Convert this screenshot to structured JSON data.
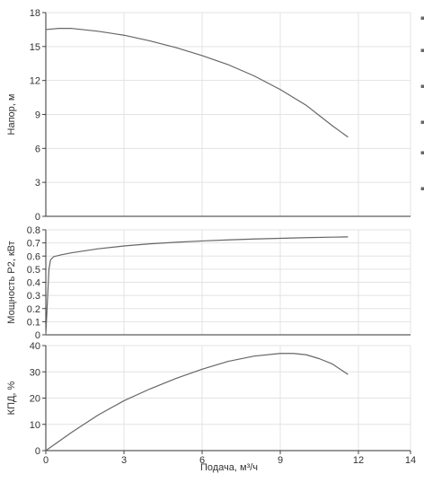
{
  "chart_data": [
    {
      "type": "line",
      "ylabel": "Напор, м",
      "ylim": [
        0,
        18
      ],
      "yticks": [
        0,
        3,
        6,
        9,
        12,
        15,
        18
      ],
      "xlim": [
        0,
        14
      ],
      "grid": true,
      "series": [
        {
          "color": "#666666",
          "x": [
            0,
            0.5,
            1,
            2,
            3,
            4,
            5,
            6,
            7,
            8,
            9,
            10,
            10.5,
            11,
            11.6
          ],
          "y": [
            16.5,
            16.6,
            16.6,
            16.35,
            16.0,
            15.5,
            14.9,
            14.2,
            13.4,
            12.4,
            11.2,
            9.8,
            8.9,
            8.0,
            7.0
          ]
        }
      ]
    },
    {
      "type": "line",
      "ylabel": "Мощность P2, кВт",
      "ylim": [
        0,
        0.8
      ],
      "yticks": [
        0,
        0.1,
        0.2,
        0.3,
        0.4,
        0.5,
        0.6,
        0.7,
        0.8
      ],
      "xlim": [
        0,
        14
      ],
      "grid": true,
      "series": [
        {
          "color": "#666666",
          "x": [
            0,
            0.12,
            0.18,
            0.3,
            0.6,
            1,
            2,
            3,
            4,
            5,
            6,
            7,
            8,
            9,
            10,
            11,
            11.6
          ],
          "y": [
            0,
            0.5,
            0.57,
            0.595,
            0.61,
            0.625,
            0.655,
            0.677,
            0.693,
            0.705,
            0.715,
            0.723,
            0.73,
            0.735,
            0.74,
            0.744,
            0.746
          ]
        }
      ]
    },
    {
      "type": "line",
      "ylabel": "КПД, %",
      "xlabel": "Подача, м³/ч",
      "ylim": [
        0,
        40
      ],
      "yticks": [
        0,
        10,
        20,
        30,
        40
      ],
      "xlim": [
        0,
        14
      ],
      "xticks": [
        0,
        3,
        6,
        9,
        12,
        14
      ],
      "grid": true,
      "series": [
        {
          "color": "#666666",
          "x": [
            0,
            1,
            2,
            3,
            4,
            5,
            6,
            7,
            8,
            9,
            9.5,
            10,
            10.5,
            11,
            11.6
          ],
          "y": [
            0,
            7,
            13.5,
            19,
            23.5,
            27.5,
            31,
            34,
            36,
            37,
            37,
            36.5,
            35,
            33,
            29
          ]
        }
      ]
    }
  ]
}
